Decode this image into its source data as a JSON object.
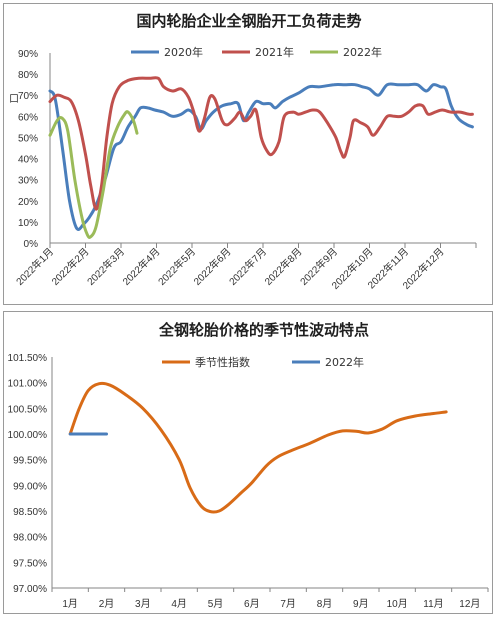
{
  "chart_data": [
    {
      "type": "line",
      "title": "国内轮胎企业全钢胎开工负荷走势",
      "y_axis_stray_text": "口",
      "ylim": [
        0,
        90
      ],
      "yticks": [
        "0%",
        "10%",
        "20%",
        "30%",
        "40%",
        "50%",
        "60%",
        "70%",
        "80%",
        "90%"
      ],
      "x_range": [
        0,
        12
      ],
      "xticks": [
        "2022年1月",
        "2022年2月",
        "2022年3月",
        "2022年4月",
        "2022年5月",
        "2022年6月",
        "2022年7月",
        "2022年8月",
        "2022年9月",
        "2022年10月",
        "2022年11月",
        "2022年12月"
      ],
      "legend_position": "top",
      "grid": false,
      "series": [
        {
          "name": "2020年",
          "color": "#4a7ebb",
          "points": [
            [
              0,
              72
            ],
            [
              0.15,
              68
            ],
            [
              0.35,
              45
            ],
            [
              0.55,
              20
            ],
            [
              0.75,
              7
            ],
            [
              0.95,
              9
            ],
            [
              1.1,
              12
            ],
            [
              1.3,
              18
            ],
            [
              1.55,
              30
            ],
            [
              1.8,
              45
            ],
            [
              2.0,
              48
            ],
            [
              2.2,
              55
            ],
            [
              2.4,
              60
            ],
            [
              2.55,
              64
            ],
            [
              2.75,
              64
            ],
            [
              2.95,
              63
            ],
            [
              3.2,
              62
            ],
            [
              3.45,
              60
            ],
            [
              3.7,
              61
            ],
            [
              3.9,
              63
            ],
            [
              4.1,
              60
            ],
            [
              4.25,
              54
            ],
            [
              4.4,
              58
            ],
            [
              4.6,
              62
            ],
            [
              4.85,
              65
            ],
            [
              5.1,
              66
            ],
            [
              5.3,
              66
            ],
            [
              5.45,
              58
            ],
            [
              5.6,
              62
            ],
            [
              5.8,
              67
            ],
            [
              6.0,
              66
            ],
            [
              6.2,
              66
            ],
            [
              6.35,
              64
            ],
            [
              6.55,
              67
            ],
            [
              6.75,
              69
            ],
            [
              7.0,
              71
            ],
            [
              7.3,
              74
            ],
            [
              7.6,
              74
            ],
            [
              8.0,
              75
            ],
            [
              8.3,
              75
            ],
            [
              8.6,
              75
            ],
            [
              8.8,
              74
            ],
            [
              9.0,
              73
            ],
            [
              9.25,
              70
            ],
            [
              9.5,
              75
            ],
            [
              9.8,
              75
            ],
            [
              10.1,
              75
            ],
            [
              10.35,
              75
            ],
            [
              10.6,
              72
            ],
            [
              10.8,
              75
            ],
            [
              11.0,
              74
            ],
            [
              11.15,
              73
            ],
            [
              11.3,
              65
            ],
            [
              11.5,
              59
            ],
            [
              11.75,
              56
            ],
            [
              11.9,
              55
            ]
          ]
        },
        {
          "name": "2021年",
          "color": "#c0504d",
          "points": [
            [
              0,
              67
            ],
            [
              0.2,
              70
            ],
            [
              0.4,
              69
            ],
            [
              0.6,
              67
            ],
            [
              0.8,
              58
            ],
            [
              1.0,
              42
            ],
            [
              1.15,
              27
            ],
            [
              1.3,
              16
            ],
            [
              1.45,
              27
            ],
            [
              1.6,
              50
            ],
            [
              1.75,
              66
            ],
            [
              1.95,
              74
            ],
            [
              2.2,
              77
            ],
            [
              2.5,
              78
            ],
            [
              2.8,
              78
            ],
            [
              3.05,
              78
            ],
            [
              3.2,
              74
            ],
            [
              3.45,
              72
            ],
            [
              3.7,
              73
            ],
            [
              3.9,
              69
            ],
            [
              4.05,
              62
            ],
            [
              4.2,
              53
            ],
            [
              4.35,
              59
            ],
            [
              4.5,
              69
            ],
            [
              4.65,
              68
            ],
            [
              4.85,
              58
            ],
            [
              5.0,
              56
            ],
            [
              5.2,
              59
            ],
            [
              5.35,
              62
            ],
            [
              5.5,
              58
            ],
            [
              5.65,
              60
            ],
            [
              5.8,
              63
            ],
            [
              5.95,
              50
            ],
            [
              6.1,
              44
            ],
            [
              6.25,
              42
            ],
            [
              6.45,
              48
            ],
            [
              6.6,
              60
            ],
            [
              6.85,
              62
            ],
            [
              7.0,
              61
            ],
            [
              7.2,
              62
            ],
            [
              7.4,
              63
            ],
            [
              7.6,
              62
            ],
            [
              7.85,
              56
            ],
            [
              8.05,
              50
            ],
            [
              8.2,
              43
            ],
            [
              8.3,
              41
            ],
            [
              8.45,
              50
            ],
            [
              8.55,
              58
            ],
            [
              8.75,
              57
            ],
            [
              8.95,
              55
            ],
            [
              9.1,
              51
            ],
            [
              9.3,
              55
            ],
            [
              9.5,
              60
            ],
            [
              9.7,
              60
            ],
            [
              9.9,
              60
            ],
            [
              10.1,
              62
            ],
            [
              10.3,
              65
            ],
            [
              10.5,
              65
            ],
            [
              10.65,
              61
            ],
            [
              10.85,
              62
            ],
            [
              11.05,
              63
            ],
            [
              11.3,
              62
            ],
            [
              11.55,
              62
            ],
            [
              11.8,
              61
            ],
            [
              11.9,
              61
            ]
          ]
        },
        {
          "name": "2022年",
          "color": "#9bbb59",
          "points": [
            [
              0,
              51
            ],
            [
              0.2,
              58
            ],
            [
              0.35,
              59
            ],
            [
              0.5,
              53
            ],
            [
              0.7,
              30
            ],
            [
              0.9,
              12
            ],
            [
              1.05,
              4
            ],
            [
              1.15,
              3
            ],
            [
              1.3,
              8
            ],
            [
              1.5,
              25
            ],
            [
              1.7,
              45
            ],
            [
              1.9,
              55
            ],
            [
              2.1,
              61
            ],
            [
              2.2,
              62
            ],
            [
              2.35,
              58
            ],
            [
              2.45,
              52
            ]
          ]
        }
      ]
    },
    {
      "type": "line",
      "title": "全钢轮胎价格的季节性波动特点",
      "ylim": [
        97.0,
        101.5
      ],
      "yticks": [
        "97.00%",
        "97.50%",
        "98.00%",
        "98.50%",
        "99.00%",
        "99.50%",
        "100.00%",
        "100.50%",
        "101.00%",
        "101.50%"
      ],
      "categories": [
        "1月",
        "2月",
        "3月",
        "4月",
        "5月",
        "6月",
        "7月",
        "8月",
        "9月",
        "10月",
        "11月",
        "12月"
      ],
      "legend_position": "top",
      "grid": false,
      "series": [
        {
          "name": "季节性指数",
          "color": "#d86b17",
          "points": [
            [
              1,
              100.0
            ],
            [
              1.25,
              100.5
            ],
            [
              1.5,
              100.85
            ],
            [
              1.8,
              100.98
            ],
            [
              2.1,
              100.95
            ],
            [
              2.5,
              100.78
            ],
            [
              3.0,
              100.5
            ],
            [
              3.5,
              100.08
            ],
            [
              4.0,
              99.5
            ],
            [
              4.3,
              98.95
            ],
            [
              4.6,
              98.6
            ],
            [
              4.85,
              98.49
            ],
            [
              5.1,
              98.5
            ],
            [
              5.35,
              98.62
            ],
            [
              5.7,
              98.85
            ],
            [
              6.0,
              99.05
            ],
            [
              6.4,
              99.38
            ],
            [
              6.7,
              99.55
            ],
            [
              7.1,
              99.68
            ],
            [
              7.6,
              99.82
            ],
            [
              8.1,
              99.98
            ],
            [
              8.5,
              100.06
            ],
            [
              8.9,
              100.05
            ],
            [
              9.2,
              100.02
            ],
            [
              9.6,
              100.1
            ],
            [
              10.0,
              100.26
            ],
            [
              10.5,
              100.35
            ],
            [
              11.0,
              100.4
            ],
            [
              11.35,
              100.43
            ]
          ]
        },
        {
          "name": "2022年",
          "color": "#4a7ebb",
          "points": [
            [
              1,
              100.0
            ],
            [
              2,
              100.0
            ]
          ]
        }
      ]
    }
  ]
}
